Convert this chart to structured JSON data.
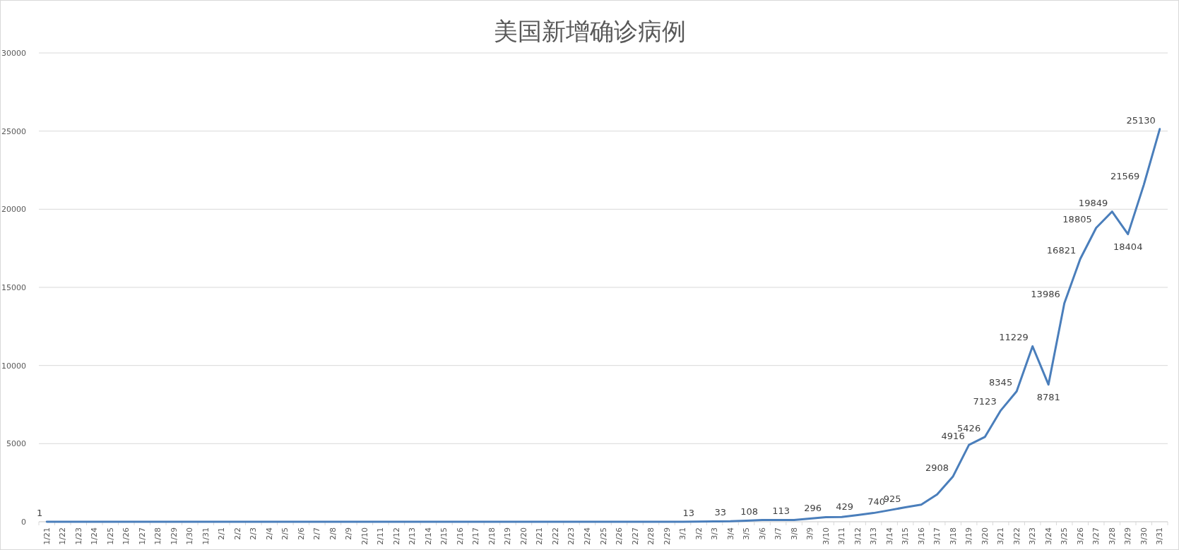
{
  "chart_data": {
    "type": "line",
    "title": "美国新增确诊病例",
    "categories": [
      "1/21",
      "1/22",
      "1/23",
      "1/24",
      "1/25",
      "1/26",
      "1/27",
      "1/28",
      "1/29",
      "1/30",
      "1/31",
      "2/1",
      "2/2",
      "2/3",
      "2/4",
      "2/5",
      "2/6",
      "2/7",
      "2/8",
      "2/9",
      "2/10",
      "2/11",
      "2/12",
      "2/13",
      "2/14",
      "2/15",
      "2/16",
      "2/17",
      "2/18",
      "2/19",
      "2/20",
      "2/21",
      "2/22",
      "2/23",
      "2/24",
      "2/25",
      "2/26",
      "2/27",
      "2/28",
      "2/29",
      "3/1",
      "3/2",
      "3/3",
      "3/4",
      "3/5",
      "3/6",
      "3/7",
      "3/8",
      "3/9",
      "3/10",
      "3/11",
      "3/12",
      "3/13",
      "3/14",
      "3/15",
      "3/16",
      "3/17",
      "3/18",
      "3/19",
      "3/20",
      "3/21",
      "3/22",
      "3/23",
      "3/24",
      "3/25",
      "3/26",
      "3/27",
      "3/28",
      "3/29",
      "3/30",
      "3/31"
    ],
    "series": [
      {
        "color": "#4a7ebb",
        "values": [
          1,
          0,
          0,
          0,
          0,
          0,
          0,
          0,
          0,
          0,
          0,
          0,
          0,
          0,
          0,
          0,
          0,
          0,
          0,
          0,
          0,
          0,
          0,
          0,
          0,
          0,
          0,
          0,
          0,
          0,
          0,
          0,
          0,
          0,
          0,
          0,
          0,
          0,
          0,
          0,
          0,
          13,
          20,
          33,
          70,
          108,
          110,
          113,
          200,
          296,
          300,
          429,
          560,
          740,
          925,
          1100,
          1750,
          2908,
          4916,
          5426,
          7123,
          8345,
          11229,
          8781,
          13986,
          16821,
          18805,
          19849,
          18404,
          21569,
          25130
        ],
        "value_labels": [
          "1",
          null,
          null,
          null,
          null,
          null,
          null,
          null,
          null,
          null,
          null,
          null,
          null,
          null,
          null,
          null,
          null,
          null,
          null,
          null,
          null,
          null,
          null,
          null,
          null,
          null,
          null,
          null,
          null,
          null,
          null,
          null,
          null,
          null,
          null,
          null,
          null,
          null,
          null,
          null,
          null,
          "13",
          null,
          "33",
          null,
          "108",
          null,
          "113",
          null,
          "296",
          null,
          "429",
          null,
          "740",
          "925",
          null,
          null,
          "2908",
          "4916",
          "5426",
          "7123",
          "8345",
          "11229",
          "8781",
          "13986",
          "16821",
          "18805",
          "19849",
          "18404",
          "21569",
          "25130"
        ]
      }
    ],
    "ylim": [
      0,
      30000
    ],
    "yticks": [
      0,
      5000,
      10000,
      15000,
      20000,
      25000,
      30000
    ],
    "grid": "y"
  }
}
